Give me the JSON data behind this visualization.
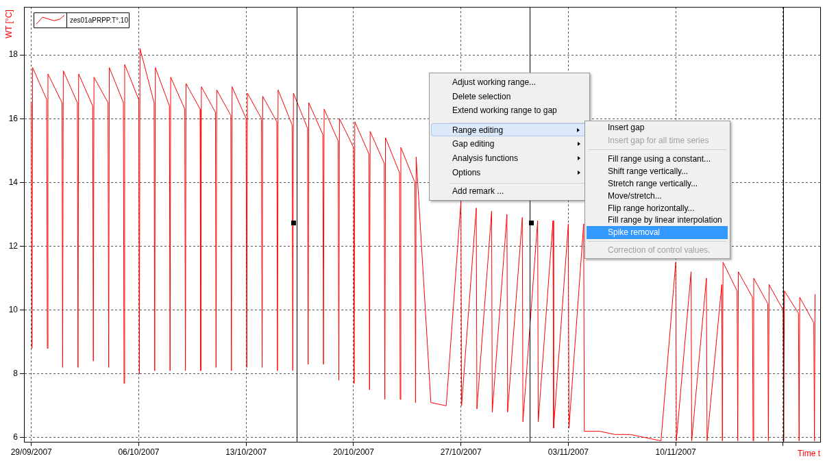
{
  "chart_data": {
    "type": "line",
    "xlabel": "Time t",
    "ylabel": "WT [°C]",
    "xlim": [
      "2007-09-28T12:30",
      "2007-11-19T10:00"
    ],
    "xticks": [
      {
        "value": "2007-09-29",
        "label": "29/09/2007"
      },
      {
        "value": "2007-10-06",
        "label": "06/10/2007"
      },
      {
        "value": "2007-10-13",
        "label": "13/10/2007"
      },
      {
        "value": "2007-10-20",
        "label": "20/10/2007"
      },
      {
        "value": "2007-10-27",
        "label": "27/10/2007"
      },
      {
        "value": "2007-11-03",
        "label": "03/11/2007"
      },
      {
        "value": "2007-11-10",
        "label": "10/11/2007"
      },
      {
        "value": "2007-11-17",
        "label": null
      }
    ],
    "ylim": [
      5.87,
      19.5
    ],
    "yticks": [
      6,
      8,
      10,
      12,
      14,
      16,
      18
    ],
    "grid": true,
    "legend": "top left",
    "marker": "none",
    "line_style": "solid",
    "ref_lines": [
      {
        "axis": "x",
        "value": "2007-10-16T07:00",
        "color": "#000000"
      },
      {
        "axis": "x",
        "value": "2007-10-31T12:00",
        "color": "#000000"
      },
      {
        "axis": "x",
        "value": "2007-11-17T00:00",
        "color": "#000000"
      }
    ],
    "annotations": [
      "Adjust working range...",
      "Delete selection",
      "Extend working range to gap",
      "Range editing",
      "Gap editing",
      "Analysis functions",
      "Options",
      "Add remark ...",
      "Insert gap",
      "Insert gap for all time series",
      "Fill range using a constant...",
      "Shift range vertically...",
      "Stretch range vertically...",
      "Move/stretch...",
      "Flip range horizontally...",
      "Fill range by linear interpolation",
      "Spike removal",
      "Correction of control values."
    ],
    "series": [
      {
        "name": "zes01aPRPP.T°.10",
        "color": "#ff0000",
        "x": [
          "2007-09-29T00:00",
          "2007-09-29T01:00",
          "2007-09-29T02:00",
          "2007-09-30T00:00",
          "2007-09-30T01:00",
          "2007-09-30T02:00",
          "2007-10-01T00:00",
          "2007-10-01T01:00",
          "2007-10-01T02:00",
          "2007-10-02T00:00",
          "2007-10-02T01:00",
          "2007-10-02T02:00",
          "2007-10-03T00:00",
          "2007-10-03T01:00",
          "2007-10-03T02:00",
          "2007-10-04T00:00",
          "2007-10-04T01:00",
          "2007-10-04T02:00",
          "2007-10-05T00:00",
          "2007-10-05T01:00",
          "2007-10-05T02:00",
          "2007-10-06T00:00",
          "2007-10-06T01:00",
          "2007-10-06T02:00",
          "2007-10-07T00:00",
          "2007-10-07T01:00",
          "2007-10-07T02:00",
          "2007-10-08T00:00",
          "2007-10-08T01:00",
          "2007-10-08T02:00",
          "2007-10-09T00:00",
          "2007-10-09T01:00",
          "2007-10-09T02:00",
          "2007-10-10T00:00",
          "2007-10-10T01:00",
          "2007-10-10T02:00",
          "2007-10-11T00:00",
          "2007-10-11T01:00",
          "2007-10-11T02:00",
          "2007-10-12T00:00",
          "2007-10-12T01:00",
          "2007-10-12T02:00",
          "2007-10-13T00:00",
          "2007-10-13T01:00",
          "2007-10-13T02:00",
          "2007-10-14T00:00",
          "2007-10-14T01:00",
          "2007-10-14T02:00",
          "2007-10-15T00:00",
          "2007-10-15T01:00",
          "2007-10-15T02:00",
          "2007-10-16T00:00",
          "2007-10-16T01:00",
          "2007-10-16T02:00",
          "2007-10-17T00:00",
          "2007-10-17T01:00",
          "2007-10-17T02:00",
          "2007-10-18T00:00",
          "2007-10-18T01:00",
          "2007-10-18T02:00",
          "2007-10-19T00:00",
          "2007-10-19T01:00",
          "2007-10-19T02:00",
          "2007-10-20T00:00",
          "2007-10-20T01:00",
          "2007-10-20T02:00",
          "2007-10-21T00:00",
          "2007-10-21T01:00",
          "2007-10-21T02:00",
          "2007-10-22T00:00",
          "2007-10-22T01:00",
          "2007-10-22T02:00",
          "2007-10-23T00:00",
          "2007-10-23T01:00",
          "2007-10-23T02:00",
          "2007-10-24T00:00",
          "2007-10-24T01:00",
          "2007-10-24T02:00",
          "2007-10-25T00:00",
          "2007-10-25T01:00",
          "2007-10-25T02:00",
          "2007-10-26T00:00",
          "2007-10-26T01:00",
          "2007-10-26T02:00",
          "2007-10-27T00:00",
          "2007-10-27T01:00",
          "2007-10-27T02:00",
          "2007-10-28T00:00",
          "2007-10-28T01:00",
          "2007-10-28T02:00",
          "2007-10-29T00:00",
          "2007-10-29T01:00",
          "2007-10-29T02:00",
          "2007-10-30T00:00",
          "2007-10-30T01:00",
          "2007-10-30T02:00",
          "2007-10-31T00:00",
          "2007-10-31T01:00",
          "2007-10-31T02:00",
          "2007-11-01T00:00",
          "2007-11-01T01:00",
          "2007-11-01T02:00",
          "2007-11-02T00:00",
          "2007-11-02T01:00",
          "2007-11-02T02:00",
          "2007-11-03T00:00",
          "2007-11-03T01:00",
          "2007-11-03T02:00",
          "2007-11-04T00:00",
          "2007-11-04T01:00",
          "2007-11-04T02:00",
          "2007-11-05T00:00",
          "2007-11-05T01:00",
          "2007-11-05T02:00",
          "2007-11-06T00:00",
          "2007-11-06T01:00",
          "2007-11-06T02:00",
          "2007-11-07T00:00",
          "2007-11-07T01:00",
          "2007-11-07T02:00",
          "2007-11-08T00:00",
          "2007-11-08T01:00",
          "2007-11-08T02:00",
          "2007-11-09T00:00",
          "2007-11-09T01:00",
          "2007-11-09T02:00",
          "2007-11-10T00:00",
          "2007-11-10T01:00",
          "2007-11-10T02:00",
          "2007-11-11T00:00",
          "2007-11-11T01:00",
          "2007-11-11T02:00",
          "2007-11-12T00:00",
          "2007-11-12T01:00",
          "2007-11-12T02:00",
          "2007-11-13T00:00",
          "2007-11-13T01:00",
          "2007-11-13T02:00",
          "2007-11-14T00:00",
          "2007-11-14T01:00",
          "2007-11-14T02:00",
          "2007-11-15T00:00",
          "2007-11-15T01:00",
          "2007-11-15T02:00",
          "2007-11-16T00:00",
          "2007-11-16T01:00",
          "2007-11-16T02:00",
          "2007-11-17T00:00",
          "2007-11-17T01:00",
          "2007-11-17T02:00",
          "2007-11-18T00:00",
          "2007-11-18T01:00",
          "2007-11-18T02:00",
          "2007-11-19T00:00",
          "2007-11-19T01:00",
          "2007-11-19T02:00"
        ],
        "values": [
          16.5,
          8.8,
          17.6,
          16.6,
          8.8,
          17.4,
          16.5,
          8.2,
          17.5,
          16.5,
          8.2,
          17.4,
          16.4,
          8.4,
          17.3,
          16.5,
          8.2,
          17.6,
          16.5,
          7.7,
          17.7,
          16.6,
          8.0,
          18.2,
          16.5,
          8.1,
          17.6,
          16.4,
          8.1,
          17.3,
          16.3,
          8.1,
          17.1,
          16.3,
          8.1,
          17.0,
          16.2,
          8.2,
          16.9,
          16.1,
          8.1,
          17.0,
          16.0,
          8.2,
          16.8,
          16.0,
          8.2,
          16.7,
          15.9,
          8.1,
          16.9,
          15.8,
          8.1,
          16.8,
          15.7,
          8.3,
          16.5,
          15.5,
          8.3,
          16.3,
          15.3,
          7.8,
          16.0,
          15.1,
          7.7,
          15.9,
          14.9,
          7.5,
          15.6,
          14.6,
          7.2,
          15.4,
          14.3,
          7.2,
          15.1,
          14.0,
          7.1,
          14.8,
          null,
          7.1,
          null,
          null,
          7.0,
          null,
          13.4,
          7.0,
          null,
          13.2,
          6.9,
          null,
          13.1,
          6.8,
          null,
          13.0,
          6.8,
          null,
          12.9,
          6.5,
          null,
          12.8,
          6.5,
          null,
          12.8,
          6.3,
          null,
          12.7,
          6.3,
          null,
          12.7,
          6.2,
          null,
          null,
          6.2,
          null,
          null,
          6.1,
          null,
          null,
          6.1,
          null,
          null,
          6.0,
          null,
          null,
          5.9,
          null,
          11.5,
          5.9,
          null,
          11.2,
          5.9,
          null,
          11.0,
          5.9,
          null,
          10.8,
          5.9,
          11.5,
          10.6,
          5.9,
          11.2,
          10.4,
          5.9,
          11.0,
          10.2,
          5.9,
          10.8,
          10.0,
          5.9,
          10.6,
          9.9,
          5.9,
          10.4,
          9.6,
          5.9,
          10.5
        ]
      }
    ]
  }
}
